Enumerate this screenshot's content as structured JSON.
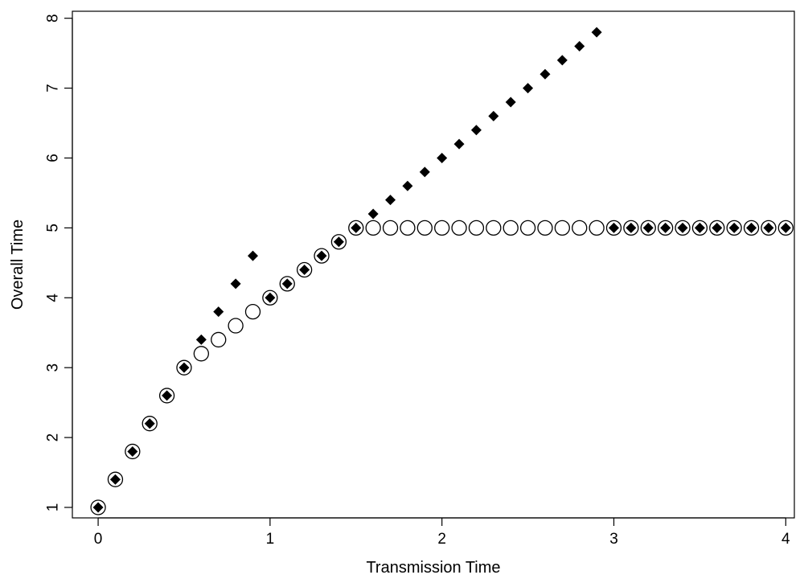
{
  "chart_data": {
    "type": "scatter",
    "title": "",
    "xlabel": "Transmission Time",
    "ylabel": "Overall Time",
    "xlim": [
      -0.15,
      4.05
    ],
    "ylim": [
      0.85,
      8.1
    ],
    "xticks": [
      0,
      1,
      2,
      3,
      4
    ],
    "yticks": [
      1,
      2,
      3,
      4,
      5,
      6,
      7,
      8
    ],
    "grid": false,
    "legend": "none",
    "series": [
      {
        "marker": "open-circle",
        "color": "#000000",
        "x": [
          0,
          0.1,
          0.2,
          0.3,
          0.4,
          0.5,
          0.6,
          0.7,
          0.8,
          0.9,
          1.0,
          1.1,
          1.2,
          1.3,
          1.4,
          1.5,
          1.6,
          1.7,
          1.8,
          1.9,
          2.0,
          2.1,
          2.2,
          2.3,
          2.4,
          2.5,
          2.6,
          2.7,
          2.8,
          2.9,
          3.0,
          3.1,
          3.2,
          3.3,
          3.4,
          3.5,
          3.6,
          3.7,
          3.8,
          3.9,
          4.0
        ],
        "y": [
          1.0,
          1.4,
          1.8,
          2.2,
          2.6,
          3.0,
          3.2,
          3.4,
          3.6,
          3.8,
          4.0,
          4.2,
          4.4,
          4.6,
          4.8,
          5,
          5,
          5,
          5,
          5,
          5,
          5,
          5,
          5,
          5,
          5,
          5,
          5,
          5,
          5,
          5,
          5,
          5,
          5,
          5,
          5,
          5,
          5,
          5,
          5,
          5
        ]
      },
      {
        "marker": "filled-diamond",
        "color": "#000000",
        "x": [
          0,
          0.1,
          0.2,
          0.3,
          0.4,
          0.5,
          0.6,
          0.7,
          0.8,
          0.9,
          1.0,
          1.1,
          1.2,
          1.3,
          1.4,
          1.5,
          1.6,
          1.7,
          1.8,
          1.9,
          2.0,
          2.1,
          2.2,
          2.3,
          2.4,
          2.5,
          2.6,
          2.7,
          2.8,
          2.9,
          3.0,
          3.1,
          3.2,
          3.3,
          3.4,
          3.5,
          3.6,
          3.7,
          3.8,
          3.9,
          4.0
        ],
        "y": [
          1.0,
          1.4,
          1.8,
          2.2,
          2.6,
          3.0,
          3.4,
          3.8,
          4.2,
          4.6,
          4.0,
          4.2,
          4.4,
          4.6,
          4.8,
          5.0,
          5.2,
          5.4,
          5.6,
          5.8,
          6.0,
          6.2,
          6.4,
          6.6,
          6.8,
          7.0,
          7.2,
          7.4,
          7.6,
          7.8,
          5,
          5,
          5,
          5,
          5,
          5,
          5,
          5,
          5,
          5,
          5
        ]
      }
    ]
  }
}
